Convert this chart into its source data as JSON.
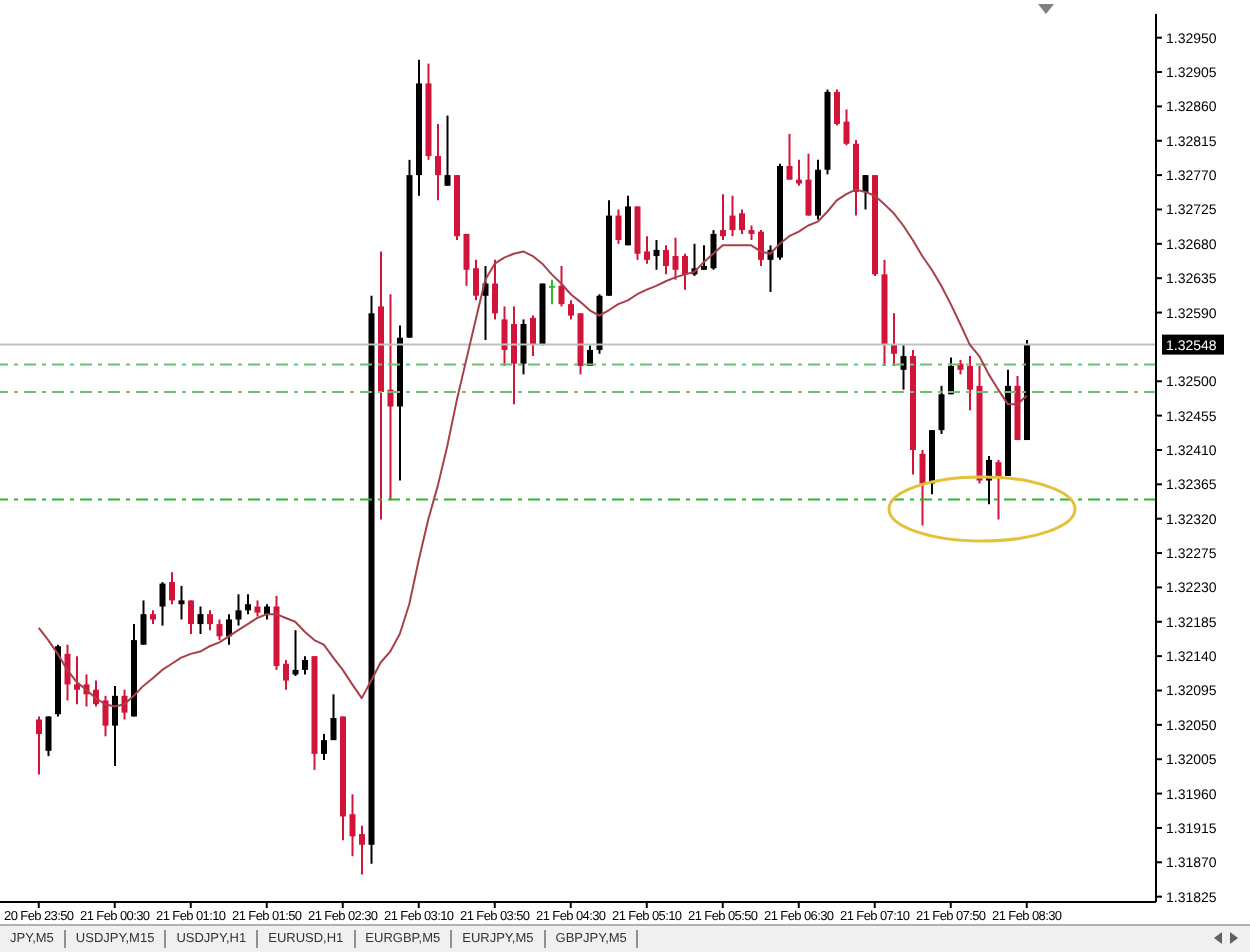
{
  "chart_data": {
    "type": "candlestick",
    "categories": [
      "20 Feb 23:50",
      null,
      null,
      null,
      null,
      null,
      null,
      null,
      "21 Feb 00:30",
      null,
      null,
      null,
      null,
      null,
      null,
      null,
      "21 Feb 01:10",
      null,
      null,
      null,
      null,
      null,
      null,
      null,
      "21 Feb 01:50",
      null,
      null,
      null,
      null,
      null,
      null,
      null,
      "21 Feb 02:30",
      null,
      null,
      null,
      null,
      null,
      null,
      null,
      "21 Feb 03:10",
      null,
      null,
      null,
      null,
      null,
      null,
      null,
      "21 Feb 03:50",
      null,
      null,
      null,
      null,
      null,
      null,
      null,
      "21 Feb 04:30",
      null,
      null,
      null,
      null,
      null,
      null,
      null,
      "21 Feb 05:10",
      null,
      null,
      null,
      null,
      null,
      null,
      null,
      "21 Feb 05:50",
      null,
      null,
      null,
      null,
      null,
      null,
      null,
      "21 Feb 06:30",
      null,
      null,
      null,
      null,
      null,
      null,
      null,
      "21 Feb 07:10",
      null,
      null,
      null,
      null,
      null,
      null,
      null,
      "21 Feb 07:50",
      null,
      null,
      null,
      null,
      null,
      null,
      null,
      "21 Feb 08:30"
    ],
    "ohlc": [
      [
        1.32057,
        1.32061,
        1.31985,
        1.32038
      ],
      [
        1.32016,
        1.32061,
        1.32009,
        1.32061
      ],
      [
        1.32064,
        1.32155,
        1.32061,
        1.32153
      ],
      [
        1.32143,
        1.32155,
        1.32082,
        1.32103
      ],
      [
        1.32103,
        1.3214,
        1.32077,
        1.32096
      ],
      [
        1.32103,
        1.32116,
        1.32074,
        1.3209
      ],
      [
        1.32096,
        1.32108,
        1.32074,
        1.32077
      ],
      [
        1.32082,
        1.32088,
        1.32035,
        1.32049
      ],
      [
        1.32049,
        1.32101,
        1.31996,
        1.32088
      ],
      [
        1.32088,
        1.32096,
        1.32057,
        1.32066
      ],
      [
        1.32061,
        1.32182,
        1.32061,
        1.32161
      ],
      [
        1.32155,
        1.32213,
        1.32155,
        1.32195
      ],
      [
        1.32195,
        1.322,
        1.32182,
        1.32188
      ],
      [
        1.32205,
        1.32237,
        1.3218,
        1.32235
      ],
      [
        1.32237,
        1.3225,
        1.32208,
        1.32213
      ],
      [
        1.32208,
        1.32232,
        1.32188,
        1.32213
      ],
      [
        1.32213,
        1.32213,
        1.32169,
        1.32182
      ],
      [
        1.32182,
        1.32205,
        1.32169,
        1.32195
      ],
      [
        1.32195,
        1.322,
        1.32174,
        1.32182
      ],
      [
        1.32182,
        1.32188,
        1.32161,
        1.32166
      ],
      [
        1.32166,
        1.32195,
        1.32155,
        1.32188
      ],
      [
        1.32188,
        1.32221,
        1.3218,
        1.322
      ],
      [
        1.322,
        1.32221,
        1.32195,
        1.32208
      ],
      [
        1.32205,
        1.32213,
        1.32192,
        1.32197
      ],
      [
        1.32195,
        1.32208,
        1.32188,
        1.32205
      ],
      [
        1.32205,
        1.32219,
        1.32122,
        1.32127
      ],
      [
        1.3213,
        1.32135,
        1.32096,
        1.32108
      ],
      [
        1.32116,
        1.32174,
        1.32114,
        1.32122
      ],
      [
        1.32122,
        1.3214,
        1.32116,
        1.32135
      ],
      [
        1.3214,
        1.3214,
        1.31991,
        1.32012
      ],
      [
        1.32012,
        1.32038,
        1.32004,
        1.3203
      ],
      [
        1.3203,
        1.3209,
        1.3203,
        1.32059
      ],
      [
        1.32061,
        1.32061,
        1.31899,
        1.3193
      ],
      [
        1.31933,
        1.31959,
        1.31878,
        1.31904
      ],
      [
        1.31907,
        1.31918,
        1.31854,
        1.31893
      ],
      [
        1.31893,
        1.32612,
        1.31868,
        1.32589
      ],
      [
        1.32598,
        1.3267,
        1.32319,
        1.32486
      ],
      [
        1.32489,
        1.32614,
        1.32344,
        1.32467
      ],
      [
        1.32467,
        1.32573,
        1.3237,
        1.32557
      ],
      [
        1.32557,
        1.3279,
        1.32557,
        1.3277
      ],
      [
        1.3277,
        1.32921,
        1.32743,
        1.3289
      ],
      [
        1.3289,
        1.32916,
        1.3279,
        1.32795
      ],
      [
        1.32795,
        1.32837,
        1.32737,
        1.3277
      ],
      [
        1.32756,
        1.32848,
        1.32756,
        1.3277
      ],
      [
        1.3277,
        1.3277,
        1.32685,
        1.3269
      ],
      [
        1.32693,
        1.32693,
        1.32625,
        1.32646
      ],
      [
        1.32648,
        1.32659,
        1.32606,
        1.32612
      ],
      [
        1.32612,
        1.32651,
        1.32554,
        1.32628
      ],
      [
        1.32628,
        1.32659,
        1.32581,
        1.32589
      ],
      [
        1.32581,
        1.32598,
        1.3252,
        1.32541
      ],
      [
        1.32575,
        1.32598,
        1.3247,
        1.32523
      ],
      [
        1.32523,
        1.32581,
        1.32509,
        1.32575
      ],
      [
        1.32583,
        1.32586,
        1.32533,
        1.32548
      ],
      [
        1.32548,
        1.32628,
        1.32547,
        1.32628
      ],
      [
        1.32625,
        1.32633,
        1.32601,
        1.32625
      ],
      [
        1.32625,
        1.32651,
        1.32598,
        1.32601
      ],
      [
        1.32601,
        1.32606,
        1.32581,
        1.32586
      ],
      [
        1.32589,
        1.32589,
        1.32509,
        1.3252
      ],
      [
        1.3252,
        1.32547,
        1.3252,
        1.32541
      ],
      [
        1.32541,
        1.32614,
        1.32536,
        1.32612
      ],
      [
        1.32612,
        1.32737,
        1.32612,
        1.32717
      ],
      [
        1.32717,
        1.32725,
        1.3268,
        1.32685
      ],
      [
        1.32678,
        1.32743,
        1.32678,
        1.32729
      ],
      [
        1.32729,
        1.32729,
        1.32659,
        1.32667
      ],
      [
        1.3267,
        1.3269,
        1.32654,
        1.32659
      ],
      [
        1.32664,
        1.32685,
        1.32646,
        1.32672
      ],
      [
        1.32672,
        1.32678,
        1.3264,
        1.32651
      ],
      [
        1.32664,
        1.32688,
        1.32633,
        1.32646
      ],
      [
        1.32664,
        1.32667,
        1.3262,
        1.3264
      ],
      [
        1.3264,
        1.3268,
        1.32638,
        1.32648
      ],
      [
        1.32646,
        1.32678,
        1.32646,
        1.32651
      ],
      [
        1.32648,
        1.32698,
        1.32646,
        1.32693
      ],
      [
        1.32698,
        1.32745,
        1.32685,
        1.3269
      ],
      [
        1.32717,
        1.32743,
        1.3269,
        1.32698
      ],
      [
        1.3272,
        1.32725,
        1.32693,
        1.32698
      ],
      [
        1.32698,
        1.32704,
        1.32685,
        1.32693
      ],
      [
        1.32696,
        1.32698,
        1.32651,
        1.32659
      ],
      [
        1.32659,
        1.32678,
        1.32617,
        1.32672
      ],
      [
        1.32662,
        1.32785,
        1.32659,
        1.32782
      ],
      [
        1.32782,
        1.32824,
        1.32764,
        1.32764
      ],
      [
        1.32764,
        1.3279,
        1.32756,
        1.32759
      ],
      [
        1.32764,
        1.32798,
        1.32717,
        1.32717
      ],
      [
        1.32717,
        1.3279,
        1.32712,
        1.32777
      ],
      [
        1.32777,
        1.32882,
        1.32771,
        1.32879
      ],
      [
        1.32879,
        1.32882,
        1.32835,
        1.32837
      ],
      [
        1.3284,
        1.32856,
        1.32809,
        1.32811
      ],
      [
        1.32811,
        1.32816,
        1.32717,
        1.32748
      ],
      [
        1.32748,
        1.3277,
        1.32725,
        1.3277
      ],
      [
        1.3277,
        1.3277,
        1.32638,
        1.3264
      ],
      [
        1.3264,
        1.32659,
        1.3252,
        1.32548
      ],
      [
        1.32548,
        1.32589,
        1.3252,
        1.32536
      ],
      [
        1.32515,
        1.32547,
        1.32489,
        1.32533
      ],
      [
        1.32533,
        1.32541,
        1.32378,
        1.3241
      ],
      [
        1.32405,
        1.3241,
        1.32311,
        1.32366
      ],
      [
        1.32366,
        1.32436,
        1.32352,
        1.32436
      ],
      [
        1.32436,
        1.32494,
        1.32431,
        1.32483
      ],
      [
        1.32483,
        1.32531,
        1.32483,
        1.3252
      ],
      [
        1.32523,
        1.32528,
        1.32509,
        1.32515
      ],
      [
        1.3252,
        1.32533,
        1.32462,
        1.32489
      ],
      [
        1.32494,
        1.3252,
        1.32366,
        1.3237
      ],
      [
        1.3237,
        1.32402,
        1.32339,
        1.32397
      ],
      [
        1.32394,
        1.32397,
        1.32319,
        1.32376
      ],
      [
        1.32376,
        1.32515,
        1.32376,
        1.32494
      ],
      [
        1.32494,
        1.32507,
        1.32423,
        1.32423
      ],
      [
        1.32423,
        1.32554,
        1.32423,
        1.32548
      ]
    ],
    "colors": [
      "#d2143a",
      "#000000",
      "#000000",
      "#d2143a",
      "#d2143a",
      "#d2143a",
      "#d2143a",
      "#d2143a",
      "#000000",
      "#d2143a",
      "#000000",
      "#000000",
      "#d2143a",
      "#000000",
      "#d2143a",
      "#000000",
      "#d2143a",
      "#000000",
      "#d2143a",
      "#d2143a",
      "#000000",
      "#000000",
      "#000000",
      "#d2143a",
      "#000000",
      "#d2143a",
      "#d2143a",
      "#000000",
      "#000000",
      "#d2143a",
      "#000000",
      "#000000",
      "#d2143a",
      "#d2143a",
      "#d2143a",
      "#000000",
      "#d2143a",
      "#d2143a",
      "#000000",
      "#000000",
      "#000000",
      "#d2143a",
      "#d2143a",
      "#000000",
      "#d2143a",
      "#d2143a",
      "#d2143a",
      "#000000",
      "#d2143a",
      "#d2143a",
      "#d2143a",
      "#000000",
      "#d2143a",
      "#000000",
      "#2fb82f",
      "#d2143a",
      "#d2143a",
      "#d2143a",
      "#000000",
      "#000000",
      "#000000",
      "#d2143a",
      "#000000",
      "#d2143a",
      "#d2143a",
      "#000000",
      "#d2143a",
      "#d2143a",
      "#d2143a",
      "#000000",
      "#000000",
      "#000000",
      "#d2143a",
      "#d2143a",
      "#d2143a",
      "#d2143a",
      "#d2143a",
      "#000000",
      "#000000",
      "#d2143a",
      "#d2143a",
      "#d2143a",
      "#000000",
      "#000000",
      "#d2143a",
      "#d2143a",
      "#d2143a",
      "#000000",
      "#d2143a",
      "#d2143a",
      "#d2143a",
      "#000000",
      "#d2143a",
      "#d2143a",
      "#000000",
      "#000000",
      "#000000",
      "#d2143a",
      "#d2143a",
      "#d2143a",
      "#000000",
      "#d2143a",
      "#000000",
      "#d2143a",
      "#000000"
    ],
    "series": [
      {
        "type": "line",
        "color": "#a8404a",
        "values": [
          1.32177,
          1.32161,
          1.32143,
          1.32122,
          1.32106,
          1.32096,
          1.32085,
          1.32077,
          1.32074,
          1.32077,
          1.32088,
          1.32101,
          1.32111,
          1.32122,
          1.3213,
          1.32138,
          1.32143,
          1.32146,
          1.32153,
          1.32158,
          1.32166,
          1.32174,
          1.32182,
          1.3219,
          1.32195,
          1.32195,
          1.3219,
          1.32185,
          1.32172,
          1.32161,
          1.32155,
          1.32138,
          1.32122,
          1.32103,
          1.32085,
          1.32108,
          1.32132,
          1.32146,
          1.32169,
          1.32208,
          1.32266,
          1.32319,
          1.32363,
          1.32415,
          1.32475,
          1.32528,
          1.32581,
          1.32633,
          1.32654,
          1.32662,
          1.32667,
          1.3267,
          1.32664,
          1.32654,
          1.3264,
          1.32628,
          1.32614,
          1.32604,
          1.32593,
          1.32586,
          1.32593,
          1.32601,
          1.32606,
          1.32614,
          1.3262,
          1.32625,
          1.32631,
          1.32636,
          1.3264,
          1.32643,
          1.32656,
          1.32667,
          1.32678,
          1.32678,
          1.32678,
          1.32678,
          1.3267,
          1.32667,
          1.3268,
          1.3269,
          1.32696,
          1.32704,
          1.32709,
          1.32722,
          1.32737,
          1.32745,
          1.32751,
          1.32748,
          1.32743,
          1.32732,
          1.3272,
          1.32704,
          1.32685,
          1.32664,
          1.32646,
          1.32625,
          1.32601,
          1.32575,
          1.32548,
          1.32533,
          1.32509,
          1.32489,
          1.3247,
          1.3247,
          1.32481
        ]
      }
    ],
    "ylim": [
      1.31818,
      1.32981
    ],
    "yticks": [
      1.31825,
      {
        "value": 1.3187,
        "label": "1.31870"
      },
      1.31915,
      {
        "value": 1.3196,
        "label": "1.31960"
      },
      1.32005,
      {
        "value": 1.3205,
        "label": "1.32050"
      },
      1.32095,
      {
        "value": 1.3214,
        "label": "1.32140"
      },
      1.32185,
      {
        "value": 1.3223,
        "label": "1.32230"
      },
      1.32275,
      {
        "value": 1.3232,
        "label": "1.32320"
      },
      1.32365,
      {
        "value": 1.3241,
        "label": "1.32410"
      },
      1.32455,
      {
        "value": 1.325,
        "label": "1.32500"
      },
      {
        "value": 1.3259,
        "label": "1.32590"
      },
      1.32635,
      {
        "value": 1.3268,
        "label": "1.32680"
      },
      1.32725,
      {
        "value": 1.3277,
        "label": "1.32770"
      },
      1.32815,
      {
        "value": 1.3286,
        "label": "1.32860"
      },
      1.32905,
      {
        "value": 1.3295,
        "label": "1.32950"
      }
    ],
    "ref_lines": [
      {
        "axis": "y",
        "value": 1.32548,
        "label": "1.32548",
        "color": "#c0c0c0",
        "line_style": "solid"
      },
      {
        "axis": "y",
        "value": 1.32522,
        "color": "#6cbf6c",
        "line_style": "dashed"
      },
      {
        "axis": "y",
        "value": 1.32486,
        "color": "#6cbf6c",
        "line_style": "dashed"
      },
      {
        "axis": "y",
        "value": 1.32345,
        "color": "#2eb82e",
        "line_style": "dashed"
      }
    ],
    "annotations": [
      "JPY,M5",
      "USDJPY,M15",
      "USDJPY,H1",
      "EURUSD,H1",
      "EURGBP,M5",
      "EURJPY,M5",
      "GBPJPY,M5"
    ]
  }
}
